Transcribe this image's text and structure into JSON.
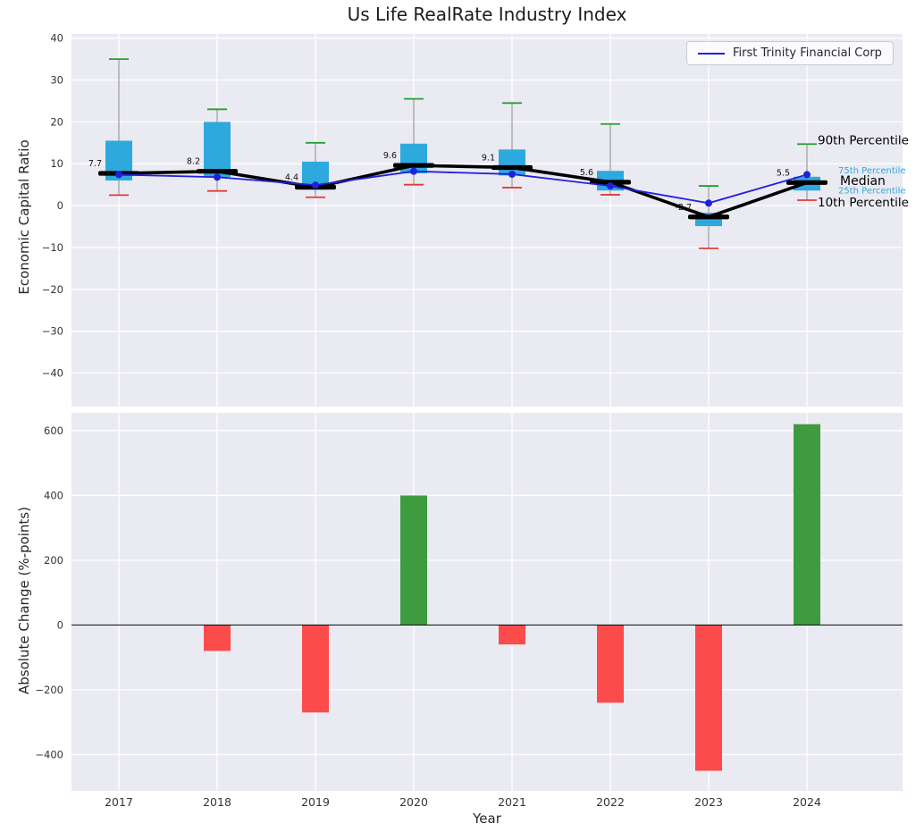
{
  "title": "Us Life RealRate Industry Index",
  "legend": {
    "label": "First Trinity Financial Corp"
  },
  "colors": {
    "plot_bg": "#eaeaf2",
    "grid": "#ffffff",
    "box_fill": "#2ea9de",
    "whisker_line": "#9a9a9a",
    "whisker_high_cap": "#21a32c",
    "whisker_low_cap": "#e23b3b",
    "median": "#000000",
    "company_line": "#2020dd",
    "bar_positive": "#3f9b3f",
    "bar_negative": "#fb4b4b",
    "tick_label": "#33333d",
    "zero_line": "#000000"
  },
  "chart_data": [
    {
      "type": "box",
      "title": "Us Life RealRate Industry Index",
      "ylabel": "Economic Capital Ratio",
      "categories": [
        "2017",
        "2018",
        "2019",
        "2020",
        "2021",
        "2022",
        "2023",
        "2024"
      ],
      "yticks": [
        40,
        30,
        20,
        10,
        0,
        -10,
        -20,
        -30,
        -40
      ],
      "ylim": [
        -48,
        41
      ],
      "grid": true,
      "legend_position": "upper right",
      "boxes": [
        {
          "year": "2017",
          "p10": 2.5,
          "p25": 6.0,
          "median": 7.7,
          "p75": 15.5,
          "p90": 35.0
        },
        {
          "year": "2018",
          "p10": 3.5,
          "p25": 6.8,
          "median": 8.2,
          "p75": 20.0,
          "p90": 23.0
        },
        {
          "year": "2019",
          "p10": 2.0,
          "p25": 3.8,
          "median": 4.4,
          "p75": 10.5,
          "p90": 15.0
        },
        {
          "year": "2020",
          "p10": 5.0,
          "p25": 7.7,
          "median": 9.6,
          "p75": 14.8,
          "p90": 25.5
        },
        {
          "year": "2021",
          "p10": 4.3,
          "p25": 7.2,
          "median": 9.1,
          "p75": 13.4,
          "p90": 24.5
        },
        {
          "year": "2022",
          "p10": 2.6,
          "p25": 3.6,
          "median": 5.6,
          "p75": 8.3,
          "p90": 19.5
        },
        {
          "year": "2023",
          "p10": -10.2,
          "p25": -4.9,
          "median": -2.7,
          "p75": -1.7,
          "p90": 4.7
        },
        {
          "year": "2024",
          "p10": 1.3,
          "p25": 3.6,
          "median": 5.5,
          "p75": 6.9,
          "p90": 14.7
        }
      ],
      "series": [
        {
          "name": "First Trinity Financial Corp",
          "values": [
            7.4,
            6.8,
            4.9,
            8.2,
            7.5,
            4.7,
            0.6,
            7.4
          ]
        }
      ],
      "percentile_labels": [
        {
          "label": "90th Percentile",
          "value": 15.5,
          "style": "major"
        },
        {
          "label": "75th Percentile",
          "value": 8.6,
          "style": "minor"
        },
        {
          "label": "Median",
          "value": 5.8,
          "style": "major_median"
        },
        {
          "label": "25th Percentile",
          "value": 3.8,
          "style": "minor"
        },
        {
          "label": "10th Percentile",
          "value": 0.7,
          "style": "major"
        }
      ]
    },
    {
      "type": "bar",
      "ylabel": "Absolute Change (%-points)",
      "xlabel": "Year",
      "categories": [
        "2017",
        "2018",
        "2019",
        "2020",
        "2021",
        "2022",
        "2023",
        "2024"
      ],
      "values": [
        null,
        -80,
        -270,
        400,
        -60,
        -240,
        -450,
        620
      ],
      "yticks": [
        600,
        400,
        200,
        0,
        -200,
        -400
      ],
      "ylim": [
        -512,
        655
      ],
      "grid": true
    }
  ]
}
